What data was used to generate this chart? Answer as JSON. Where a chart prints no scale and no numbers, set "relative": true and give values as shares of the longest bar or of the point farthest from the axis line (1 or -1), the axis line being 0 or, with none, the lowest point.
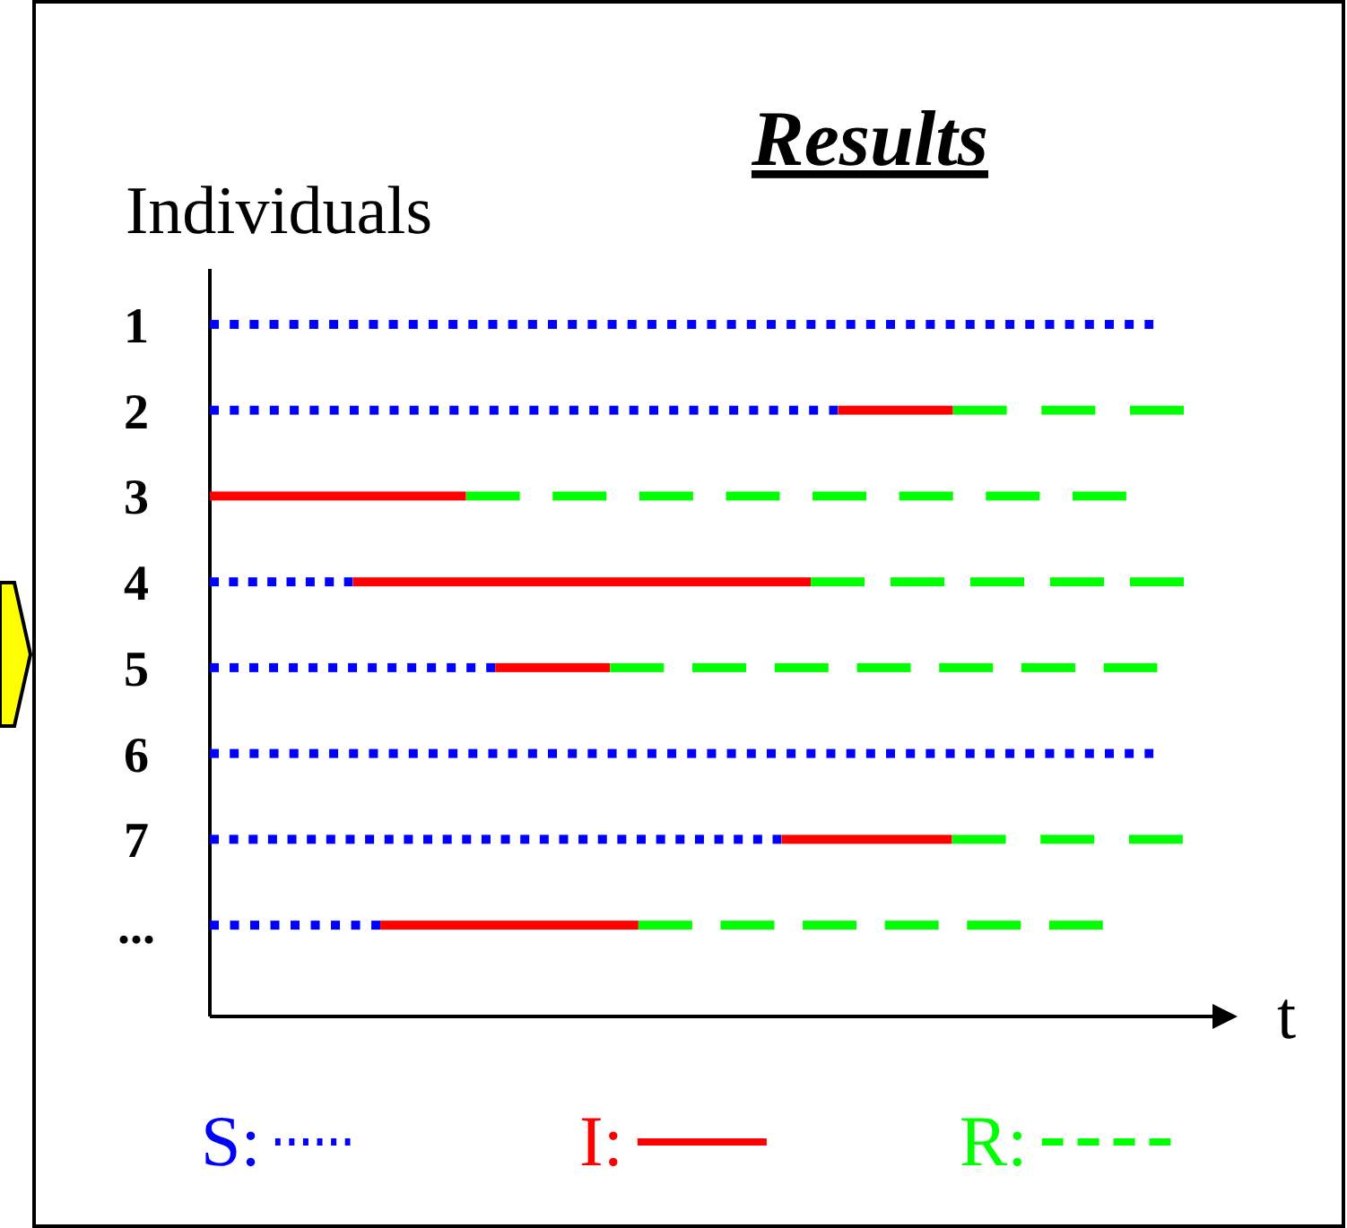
{
  "chart_data": {
    "type": "bar",
    "orientation": "horizontal",
    "stacked": true,
    "relative": true,
    "title": "Results",
    "ylabel": "Individuals",
    "annotations": [
      "t"
    ],
    "legend": "bottom",
    "categories": [
      "1",
      "2",
      "3",
      "4",
      "5",
      "6",
      "7",
      "..."
    ],
    "series": [
      {
        "name": "S:",
        "color": "#0000ff",
        "line_style": "dotted",
        "values": [
          0.969,
          0.645,
          0,
          0.147,
          0.293,
          0.969,
          0.587,
          0.175
        ]
      },
      {
        "name": "I:",
        "color": "#ff0000",
        "line_style": "solid",
        "values": [
          0,
          0.118,
          0.263,
          0.47,
          0.118,
          0,
          0.175,
          0.265
        ]
      },
      {
        "name": "R:",
        "color": "#00ff00",
        "line_style": "dashed",
        "values": [
          0,
          0.237,
          0.678,
          0.383,
          0.562,
          0,
          0.237,
          0.477
        ]
      }
    ]
  }
}
